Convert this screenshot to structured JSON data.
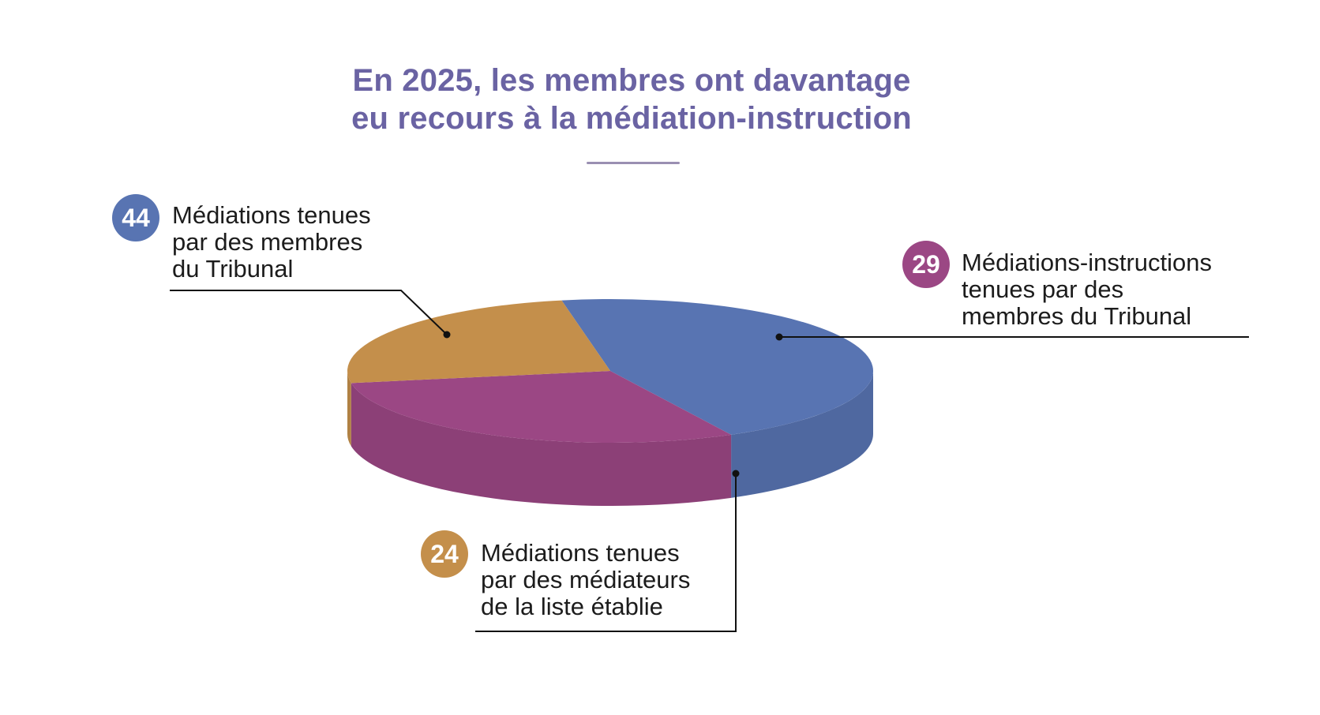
{
  "title_line1": "En 2025, les membres ont davantage",
  "title_line2": "eu recours à la médiation-instruction",
  "colors": {
    "title": "#6a63a3",
    "rule": "#9a8fb2",
    "blue": "#5874b2",
    "purple": "#9b4784",
    "orange": "#c48f4b"
  },
  "chart_data": {
    "type": "pie",
    "style": "3d",
    "slices": [
      {
        "label": "Médiations tenues par des membres du Tribunal",
        "value": 44,
        "color": "#5874b2"
      },
      {
        "label": "Médiations-instructions tenues par des membres du Tribunal",
        "value": 29,
        "color": "#9b4784"
      },
      {
        "label": "Médiations tenues par des médiateurs de la liste établie",
        "value": 24,
        "color": "#c48f4b"
      }
    ]
  },
  "legend": {
    "blue": {
      "value": "44",
      "label": "Médiations tenues\npar des membres\ndu Tribunal"
    },
    "purple": {
      "value": "29",
      "label": "Médiations-instructions\ntenues par des\nmembres du Tribunal"
    },
    "orange": {
      "value": "24",
      "label": "Médiations tenues\npar des médiateurs\nde la liste établie"
    }
  }
}
